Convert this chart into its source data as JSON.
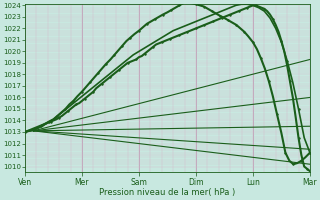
{
  "title": "Pression niveau de la mer( hPa )",
  "bg_color": "#c8e8e0",
  "grid_color_minor": "#d4b8c8",
  "grid_color_major": "#c0a0b8",
  "line_color": "#1a5e1a",
  "ylim": [
    1010,
    1024
  ],
  "ytick_labels": [
    "1010",
    "1011",
    "1012",
    "1013",
    "1014",
    "1015",
    "1016",
    "1017",
    "1018",
    "1019",
    "1020",
    "1021",
    "1022",
    "1023",
    "1024"
  ],
  "ytick_vals": [
    1010,
    1011,
    1012,
    1013,
    1014,
    1015,
    1016,
    1017,
    1018,
    1019,
    1020,
    1021,
    1022,
    1023,
    1024
  ],
  "xtick_labels": [
    "Ven",
    "Mer",
    "Sam",
    "Dim",
    "Lun",
    "Mar"
  ],
  "xtick_positions": [
    0,
    1,
    2,
    3,
    4,
    5
  ],
  "xlim": [
    0,
    5
  ],
  "forecast_lines": [
    {
      "x0": 0,
      "y0": 1013.1,
      "x1": 5,
      "y1": 1019.3,
      "lw": 0.8,
      "has_markers": false
    },
    {
      "x0": 0,
      "y0": 1013.1,
      "x1": 5,
      "y1": 1016.0,
      "lw": 0.8,
      "has_markers": false
    },
    {
      "x0": 0,
      "y0": 1013.1,
      "x1": 5,
      "y1": 1013.5,
      "lw": 0.8,
      "has_markers": false
    },
    {
      "x0": 0,
      "y0": 1013.1,
      "x1": 5,
      "y1": 1011.5,
      "lw": 0.8,
      "has_markers": false
    },
    {
      "x0": 0,
      "y0": 1013.1,
      "x1": 5,
      "y1": 1010.2,
      "lw": 0.8,
      "has_markers": false
    }
  ],
  "top_line": {
    "x": [
      0,
      0.05,
      0.1,
      0.15,
      0.2,
      0.25,
      0.3,
      0.35,
      0.4,
      0.45,
      0.5,
      0.55,
      0.6,
      0.65,
      0.7,
      0.75,
      0.8,
      0.85,
      0.9,
      0.95,
      1.0,
      1.05,
      1.1,
      1.15,
      1.2,
      1.25,
      1.3,
      1.35,
      1.4,
      1.45,
      1.5,
      1.55,
      1.6,
      1.65,
      1.7,
      1.75,
      1.8,
      1.85,
      1.9,
      1.95,
      2.0,
      2.05,
      2.1,
      2.15,
      2.2,
      2.25,
      2.3,
      2.35,
      2.4,
      2.45,
      2.5,
      2.55,
      2.6,
      2.65,
      2.7,
      2.75,
      2.8,
      2.85,
      2.9,
      2.95,
      3.0,
      3.05,
      3.1,
      3.15,
      3.2,
      3.25,
      3.3,
      3.35,
      3.4,
      3.45,
      3.5,
      3.55,
      3.6,
      3.65,
      3.7,
      3.75,
      3.8,
      3.85,
      3.9,
      3.95,
      4.0,
      4.05,
      4.1,
      4.15,
      4.2,
      4.25,
      4.3,
      4.35,
      4.4,
      4.45,
      4.5,
      4.55,
      4.6,
      4.65,
      4.7,
      4.75,
      4.8,
      4.85,
      4.9,
      4.95,
      5.0
    ],
    "y": [
      1013,
      1013.1,
      1013.2,
      1013.3,
      1013.4,
      1013.5,
      1013.6,
      1013.7,
      1013.8,
      1013.9,
      1014.0,
      1014.1,
      1014.25,
      1014.4,
      1014.6,
      1014.8,
      1015.0,
      1015.2,
      1015.4,
      1015.5,
      1015.7,
      1015.9,
      1016.1,
      1016.3,
      1016.5,
      1016.8,
      1017.0,
      1017.2,
      1017.4,
      1017.6,
      1017.8,
      1018.0,
      1018.2,
      1018.4,
      1018.6,
      1018.8,
      1019.0,
      1019.1,
      1019.2,
      1019.3,
      1019.5,
      1019.6,
      1019.8,
      1020.0,
      1020.2,
      1020.4,
      1020.6,
      1020.7,
      1020.8,
      1020.9,
      1021.0,
      1021.1,
      1021.2,
      1021.3,
      1021.4,
      1021.5,
      1021.6,
      1021.7,
      1021.8,
      1021.9,
      1022.0,
      1022.1,
      1022.2,
      1022.3,
      1022.4,
      1022.5,
      1022.6,
      1022.7,
      1022.8,
      1022.9,
      1023.0,
      1023.1,
      1023.2,
      1023.3,
      1023.4,
      1023.5,
      1023.6,
      1023.7,
      1023.8,
      1023.9,
      1024.0,
      1024.0,
      1023.9,
      1023.8,
      1023.7,
      1023.5,
      1023.2,
      1022.8,
      1022.3,
      1021.7,
      1020.9,
      1020.0,
      1018.8,
      1017.4,
      1016.0,
      1014.3,
      1012.5,
      1011.0,
      1010.0,
      1009.8,
      1009.6
    ],
    "lw": 1.5,
    "markersize": 2.0
  },
  "second_line": {
    "x": [
      0,
      0.1,
      0.2,
      0.3,
      0.4,
      0.5,
      0.6,
      0.7,
      0.8,
      0.9,
      1.0,
      1.1,
      1.2,
      1.3,
      1.4,
      1.5,
      1.6,
      1.7,
      1.8,
      1.9,
      2.0,
      2.1,
      2.2,
      2.3,
      2.4,
      2.5,
      2.6,
      2.7,
      2.8,
      2.9,
      3.0,
      3.1,
      3.2,
      3.3,
      3.4,
      3.5,
      3.6,
      3.7,
      3.8,
      3.9,
      4.0,
      4.1,
      4.2,
      4.3,
      4.4,
      4.5,
      4.6,
      4.7,
      4.8,
      4.9,
      5.0
    ],
    "y": [
      1013,
      1013.1,
      1013.3,
      1013.5,
      1013.8,
      1014.1,
      1014.5,
      1014.9,
      1015.3,
      1015.7,
      1016.1,
      1016.5,
      1016.9,
      1017.3,
      1017.7,
      1018.1,
      1018.5,
      1018.9,
      1019.3,
      1019.7,
      1020.0,
      1020.3,
      1020.6,
      1020.9,
      1021.2,
      1021.5,
      1021.8,
      1022.0,
      1022.2,
      1022.4,
      1022.6,
      1022.8,
      1023.0,
      1023.2,
      1023.4,
      1023.6,
      1023.8,
      1024.0,
      1024.1,
      1024.1,
      1024.0,
      1023.8,
      1023.5,
      1022.9,
      1022.0,
      1020.8,
      1019.2,
      1017.3,
      1015.0,
      1012.5,
      1011.2
    ],
    "lw": 1.2,
    "markersize": 2.0
  },
  "obs_line": {
    "x": [
      0,
      0.07,
      0.14,
      0.21,
      0.28,
      0.35,
      0.42,
      0.5,
      0.57,
      0.64,
      0.71,
      0.78,
      0.85,
      0.92,
      1.0,
      1.07,
      1.14,
      1.21,
      1.28,
      1.35,
      1.42,
      1.5,
      1.57,
      1.64,
      1.71,
      1.78,
      1.85,
      1.92,
      2.0,
      2.07,
      2.14,
      2.21,
      2.28,
      2.35,
      2.42,
      2.5,
      2.57,
      2.64,
      2.71,
      2.78,
      2.85,
      2.92,
      3.0,
      3.07,
      3.14,
      3.21,
      3.28,
      3.35,
      3.42,
      3.5,
      3.57,
      3.64,
      3.71,
      3.78,
      3.85,
      3.92,
      4.0,
      4.07,
      4.14,
      4.21,
      4.28,
      4.35,
      4.42,
      4.5,
      4.57,
      4.64,
      4.71,
      4.78,
      4.85,
      4.92,
      5.0
    ],
    "y": [
      1013,
      1013.1,
      1013.15,
      1013.3,
      1013.5,
      1013.7,
      1013.9,
      1014.1,
      1014.4,
      1014.7,
      1015.0,
      1015.4,
      1015.7,
      1016.1,
      1016.5,
      1016.9,
      1017.3,
      1017.7,
      1018.1,
      1018.5,
      1018.9,
      1019.3,
      1019.7,
      1020.1,
      1020.5,
      1020.9,
      1021.2,
      1021.5,
      1021.8,
      1022.1,
      1022.4,
      1022.6,
      1022.8,
      1023.0,
      1023.2,
      1023.4,
      1023.6,
      1023.8,
      1024.0,
      1024.2,
      1024.3,
      1024.2,
      1024.1,
      1024.0,
      1023.9,
      1023.7,
      1023.5,
      1023.3,
      1023.1,
      1022.9,
      1022.7,
      1022.5,
      1022.3,
      1022.0,
      1021.7,
      1021.3,
      1020.8,
      1020.2,
      1019.4,
      1018.5,
      1017.4,
      1016.1,
      1014.6,
      1012.9,
      1011.2,
      1010.5,
      1010.2,
      1010.3,
      1010.5,
      1010.8,
      1011.2
    ],
    "lw": 1.5,
    "markersize": 2.0
  }
}
